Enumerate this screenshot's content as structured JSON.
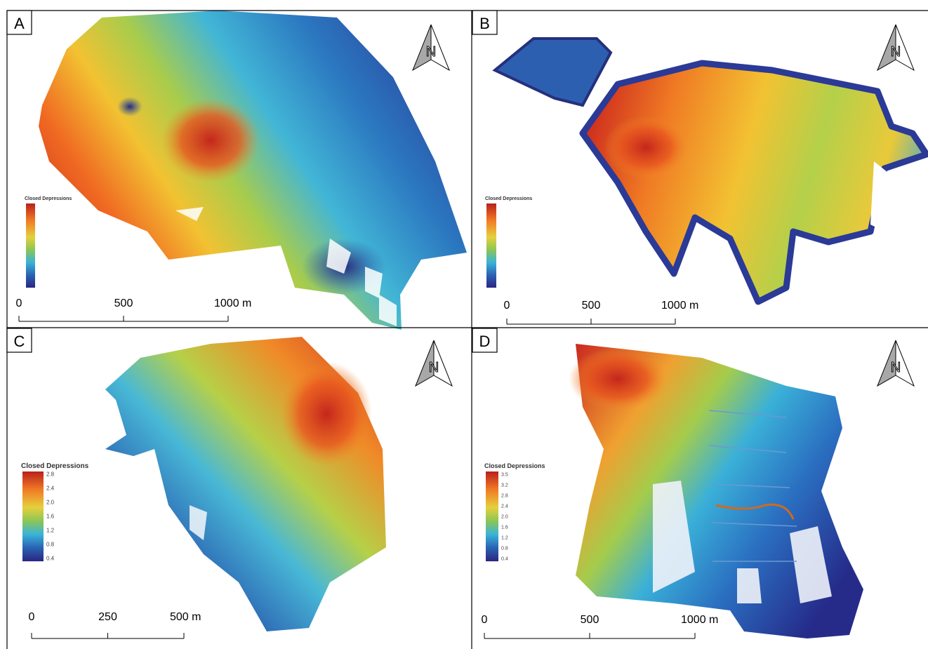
{
  "panels": [
    {
      "label": "A",
      "legend": {
        "title": "Closed Depressions"
      },
      "scale": [
        "0",
        "500",
        "1000 m"
      ]
    },
    {
      "label": "B",
      "legend": {
        "title": "Closed Depressions"
      },
      "scale": [
        "0",
        "500",
        "1000 m"
      ]
    },
    {
      "label": "C",
      "legend": {
        "title": "Closed Depressions",
        "ticks": [
          "2.8",
          "2.4",
          "2.0",
          "1.6",
          "1.2",
          "0.8",
          "0.4"
        ]
      },
      "scale": [
        "0",
        "250",
        "500 m"
      ]
    },
    {
      "label": "D",
      "legend": {
        "title": "Closed Depressions",
        "ticks": [
          "3.5",
          "3.2",
          "2.8",
          "2.4",
          "2.0",
          "1.6",
          "1.2",
          "0.8",
          "0.4"
        ]
      },
      "scale": [
        "0",
        "500",
        "1000 m"
      ]
    }
  ],
  "north_label": "N"
}
